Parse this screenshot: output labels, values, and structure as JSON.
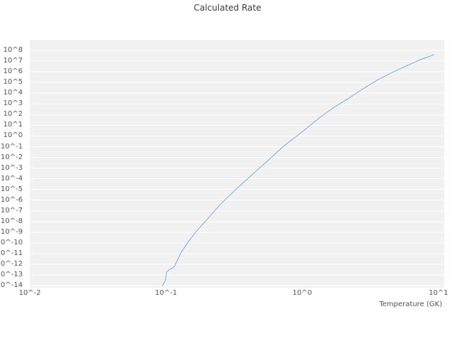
{
  "chart_data": {
    "type": "line",
    "title": "Calculated Rate",
    "xlabel": "Temperature (GK)",
    "ylabel": "",
    "x_scale": "log",
    "y_scale": "log",
    "xlim": [
      0.01,
      10
    ],
    "ylim": [
      1e-14,
      100000000.0
    ],
    "grid": "horizontal-only",
    "legend": "none",
    "x_ticks": [
      {
        "exp": -2,
        "label": "10^-2"
      },
      {
        "exp": -1,
        "label": "10^-1"
      },
      {
        "exp": 0,
        "label": "10^0"
      },
      {
        "exp": 1,
        "label": "10^1"
      }
    ],
    "y_ticks": [
      {
        "exp": 8,
        "label": "10^8"
      },
      {
        "exp": 7,
        "label": "10^7"
      },
      {
        "exp": 6,
        "label": "10^6"
      },
      {
        "exp": 5,
        "label": "10^5"
      },
      {
        "exp": 4,
        "label": "10^4"
      },
      {
        "exp": 3,
        "label": "10^3"
      },
      {
        "exp": 2,
        "label": "10^2"
      },
      {
        "exp": 1,
        "label": "10^1"
      },
      {
        "exp": 0,
        "label": "10^0"
      },
      {
        "exp": -1,
        "label": "10^-1"
      },
      {
        "exp": -2,
        "label": "10^-2"
      },
      {
        "exp": -3,
        "label": "10^-3"
      },
      {
        "exp": -4,
        "label": "10^-4"
      },
      {
        "exp": -5,
        "label": "10^-5"
      },
      {
        "exp": -6,
        "label": "10^-6"
      },
      {
        "exp": -7,
        "label": "10^-7"
      },
      {
        "exp": -8,
        "label": "10^-8"
      },
      {
        "exp": -9,
        "label": "10^-9"
      },
      {
        "exp": -10,
        "label": "10^-10"
      },
      {
        "exp": -11,
        "label": "10^-11"
      },
      {
        "exp": -12,
        "label": "10^-12"
      },
      {
        "exp": -13,
        "label": "10^-13"
      },
      {
        "exp": -14,
        "label": "10^-14"
      }
    ],
    "series": [
      {
        "name": "calculated-rate",
        "x": [
          0.094,
          0.099,
          0.101,
          0.106,
          0.11,
          0.115,
          0.129,
          0.146,
          0.165,
          0.197,
          0.251,
          0.319,
          0.406,
          0.548,
          0.74,
          1.0,
          1.35,
          1.72,
          2.18,
          2.78,
          3.53,
          4.5,
          5.71,
          7.28,
          9.25
        ],
        "y": [
          1e-14,
          3.2e-14,
          2e-13,
          3.2e-13,
          4e-13,
          6.3e-13,
          1.3e-11,
          1.3e-10,
          1e-09,
          1.3e-08,
          4e-07,
          7.9e-06,
          0.00013,
          0.004,
          0.13,
          2.5,
          56,
          500,
          3200,
          25000.0,
          160000.0,
          790000.0,
          3200000.0,
          13000000.0,
          40000000.0
        ]
      }
    ],
    "colors": {
      "line": "#7aaede",
      "plot_background": "#f1f1f1",
      "gridline": "#ffffff",
      "title_text": "#3c3c3c",
      "tick_text": "#555555"
    }
  }
}
